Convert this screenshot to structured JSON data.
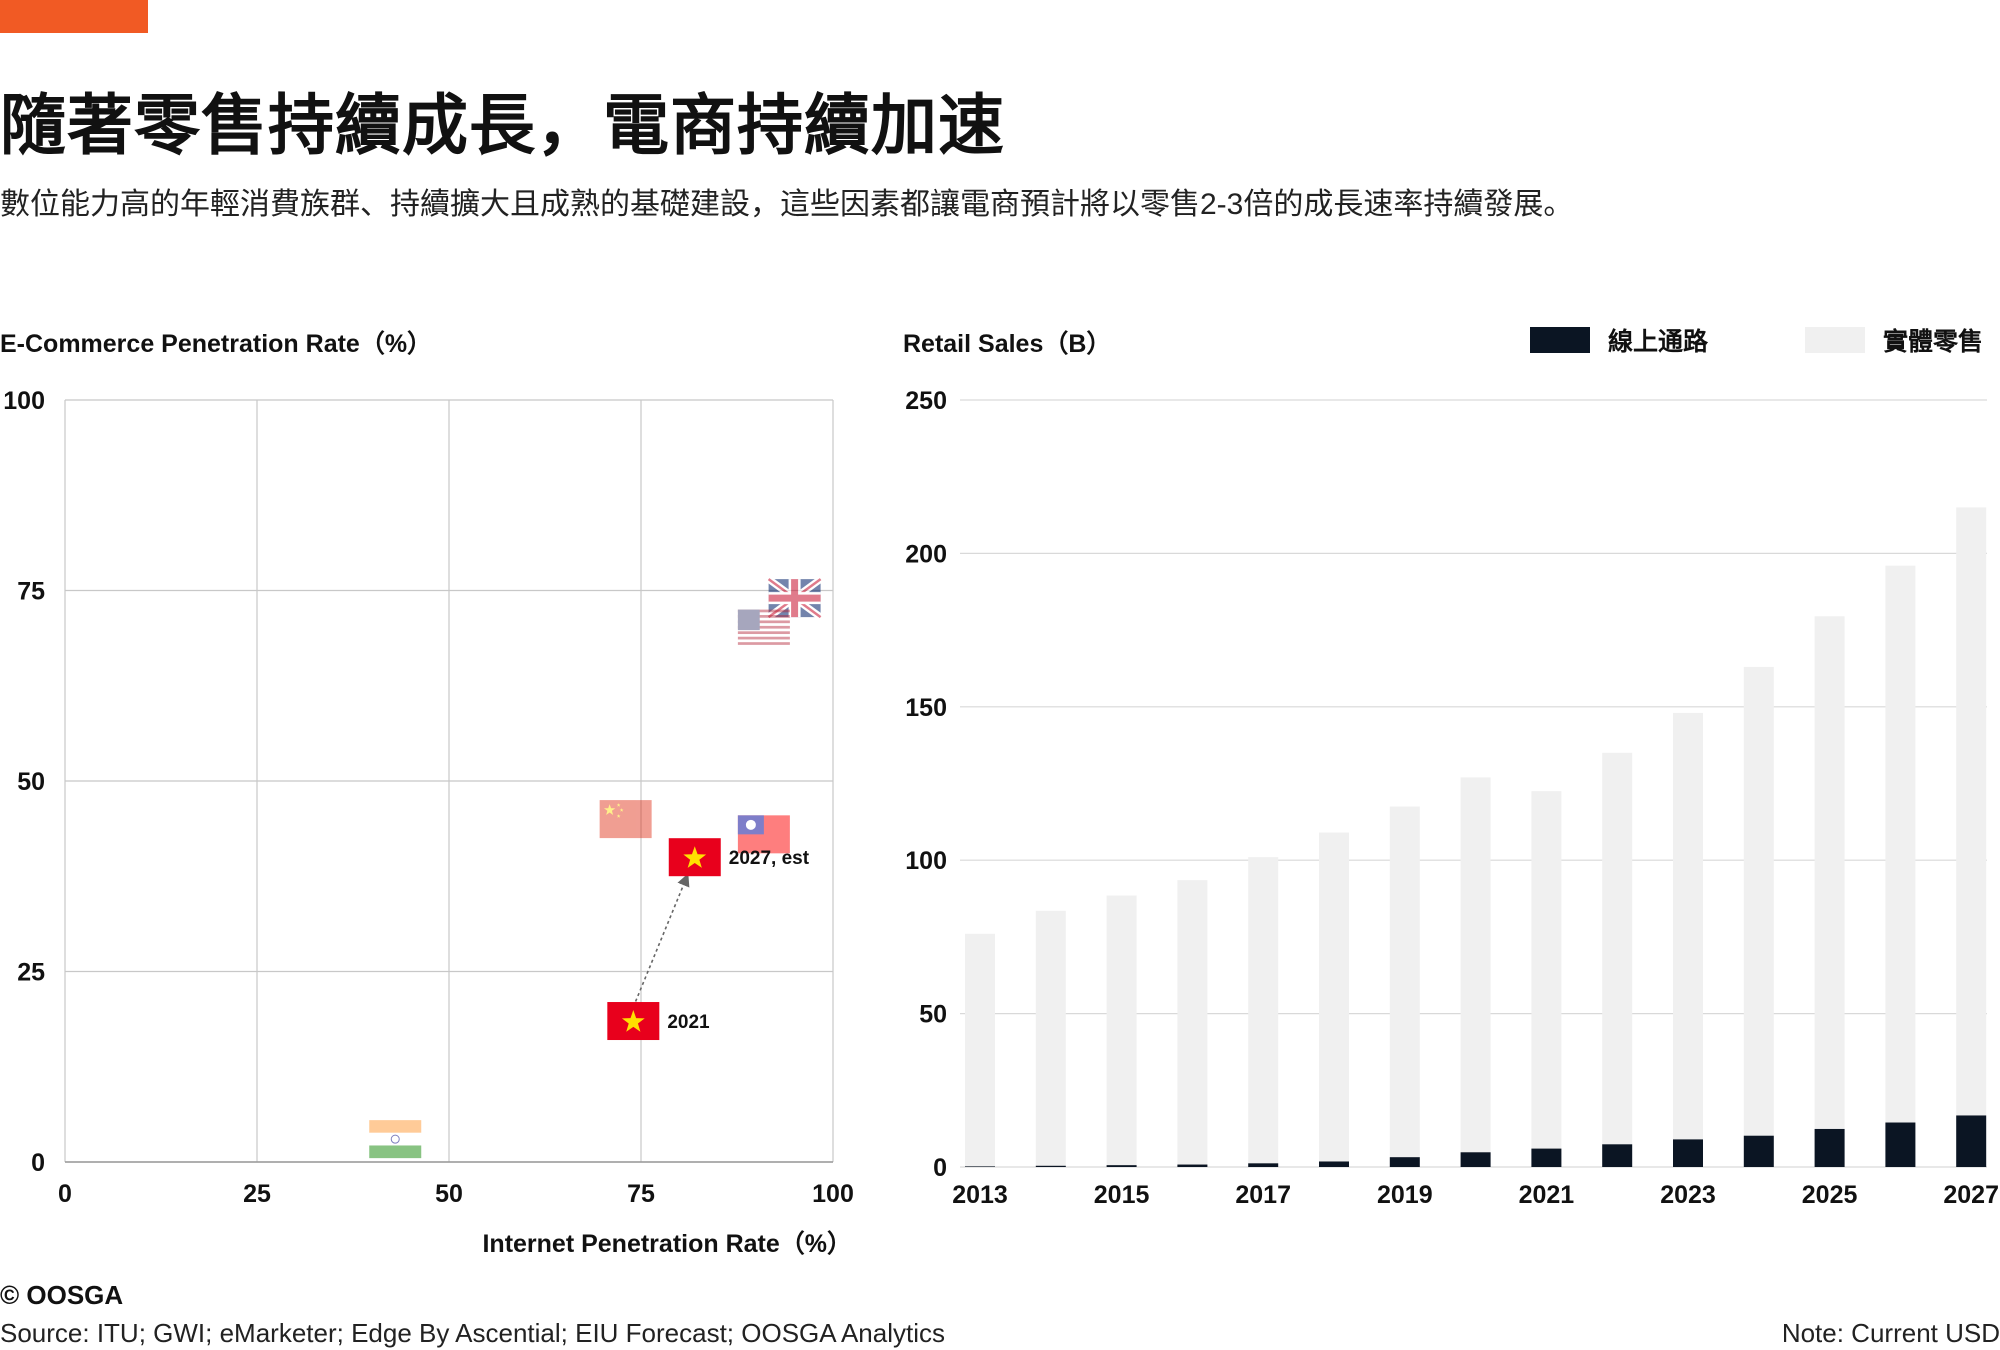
{
  "header": {
    "title": "隨著零售持續成長，電商持續加速",
    "subtitle": "數位能力高的年輕消費族群、持續擴大且成熟的基礎建設，這些因素都讓電商預計將以零售2-3倍的成長速率持續發展。"
  },
  "colors": {
    "accent": "#f15a24",
    "online": "#0b1523",
    "offline": "#f0f0f0"
  },
  "chart_data": [
    {
      "type": "scatter",
      "title": "E-Commerce Penetration Rate（%）",
      "xlabel": "Internet Penetration Rate（%）",
      "ylabel": "E-Commerce Penetration Rate（%）",
      "xlim": [
        0,
        100
      ],
      "ylim": [
        0,
        100
      ],
      "xticks": [
        "0",
        "25",
        "50",
        "75",
        "100"
      ],
      "yticks": [
        "0",
        "25",
        "50",
        "75",
        "100"
      ],
      "grid": true,
      "points": [
        {
          "flag": "uk",
          "x": 95,
          "y": 74
        },
        {
          "flag": "us",
          "x": 91,
          "y": 70
        },
        {
          "flag": "china",
          "x": 73,
          "y": 45
        },
        {
          "flag": "taiwan",
          "x": 91,
          "y": 43
        },
        {
          "flag": "vietnam",
          "x": 82,
          "y": 40,
          "label": "2027, est"
        },
        {
          "flag": "vietnam",
          "x": 74,
          "y": 18.5,
          "label": "2021"
        },
        {
          "flag": "india",
          "x": 43,
          "y": 3
        }
      ],
      "arrow": {
        "from": [
          74,
          18.5
        ],
        "to": [
          81,
          37.5
        ]
      }
    },
    {
      "type": "bar",
      "stacked": true,
      "title": "Retail Sales（B）",
      "ylim": [
        0,
        250
      ],
      "yticks": [
        "0",
        "50",
        "100",
        "150",
        "200",
        "250"
      ],
      "grid": true,
      "legend_position": "top-right",
      "categories": [
        "2013",
        "2014",
        "2015",
        "2016",
        "2017",
        "2018",
        "2019",
        "2020",
        "2021",
        "2022",
        "2023",
        "2024",
        "2025",
        "2026",
        "2027"
      ],
      "xtick_labels": [
        "2013",
        "2015",
        "2017",
        "2019",
        "2021",
        "2023",
        "2025",
        "2027"
      ],
      "series": [
        {
          "name": "線上通路",
          "values": [
            0.2,
            0.4,
            0.6,
            0.8,
            1.2,
            1.8,
            3.2,
            4.8,
            6.0,
            7.4,
            9.0,
            10.2,
            12.4,
            14.5,
            16.8
          ]
        },
        {
          "name": "實體零售",
          "values": [
            75.8,
            83.1,
            87.9,
            92.7,
            99.8,
            107.2,
            114.3,
            122.2,
            116.5,
            127.6,
            139.0,
            152.8,
            167.1,
            181.5,
            198.2
          ]
        }
      ]
    }
  ],
  "footer": {
    "brand": "© OOSGA",
    "source": "Source: ITU; GWI; eMarketer; Edge By Ascential; EIU Forecast; OOSGA Analytics",
    "note": "Note: Current USD"
  }
}
